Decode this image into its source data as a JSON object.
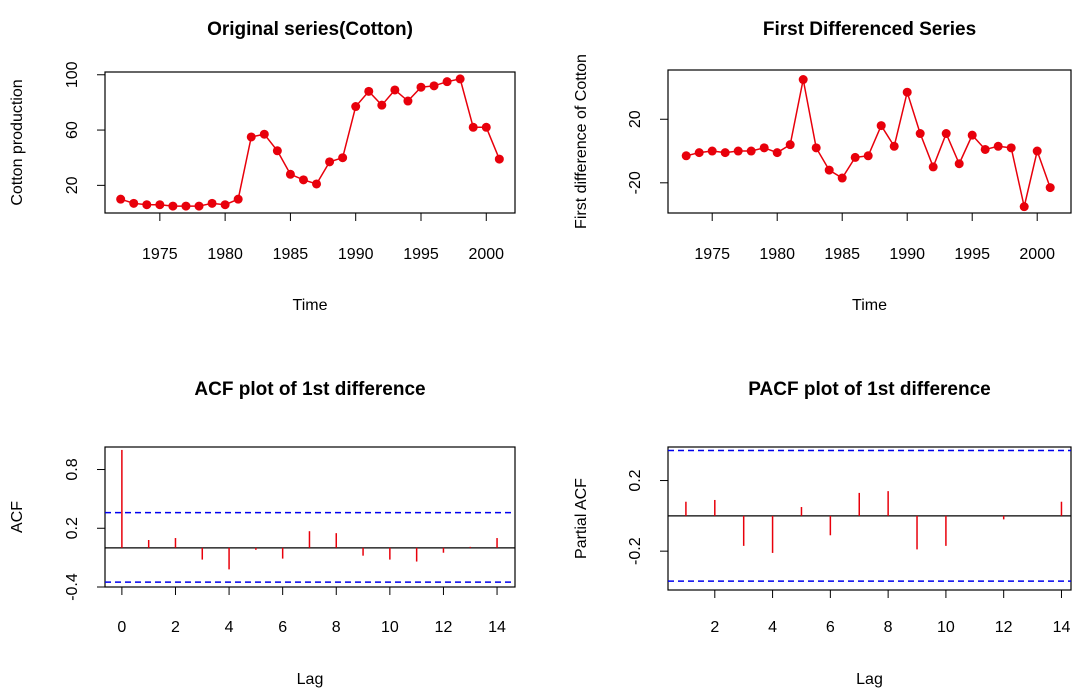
{
  "chart_data": [
    {
      "type": "line",
      "title": "Original series(Cotton)",
      "xlabel": "Time",
      "ylabel": "Cotton production",
      "x": [
        1972,
        1973,
        1974,
        1975,
        1976,
        1977,
        1978,
        1979,
        1980,
        1981,
        1982,
        1983,
        1984,
        1985,
        1986,
        1987,
        1988,
        1989,
        1990,
        1991,
        1992,
        1993,
        1994,
        1995,
        1996,
        1997,
        1998,
        1999,
        2000,
        2001
      ],
      "series": [
        {
          "color": "#e8000b",
          "values": [
            10,
            7,
            6,
            6,
            5,
            5,
            5,
            7,
            6,
            10,
            55,
            57,
            45,
            28,
            24,
            21,
            37,
            40,
            77,
            88,
            78,
            89,
            81,
            91,
            92,
            95,
            97,
            62,
            62,
            39
          ]
        }
      ],
      "xlim": [
        1970.8,
        2002.2
      ],
      "xticks": [
        1975,
        1980,
        1985,
        1990,
        1995,
        2000
      ],
      "ylim": [
        0,
        102
      ],
      "yticks": [
        20,
        60,
        100
      ]
    },
    {
      "type": "line",
      "title": "First Differenced Series",
      "xlabel": "Time",
      "ylabel": "First difference of Cotton",
      "x": [
        1973,
        1974,
        1975,
        1976,
        1977,
        1978,
        1979,
        1980,
        1981,
        1982,
        1983,
        1984,
        1985,
        1986,
        1987,
        1988,
        1989,
        1990,
        1991,
        1992,
        1993,
        1994,
        1995,
        1996,
        1997,
        1998,
        1999,
        2000,
        2001
      ],
      "series": [
        {
          "color": "#e8000b",
          "values": [
            -3,
            -1,
            0,
            -1,
            0,
            0,
            2,
            -1,
            4,
            45,
            2,
            -12,
            -17,
            -4,
            -3,
            16,
            3,
            37,
            11,
            -10,
            11,
            -8,
            10,
            1,
            3,
            2,
            -35,
            0,
            -23
          ]
        }
      ],
      "xlim": [
        1971.6,
        2002.6
      ],
      "xticks": [
        1975,
        1980,
        1985,
        1990,
        1995,
        2000
      ],
      "ylim": [
        -39,
        51
      ],
      "yticks": [
        -20,
        20
      ]
    },
    {
      "type": "stem",
      "title": "ACF plot of 1st difference",
      "xlabel": "Lag",
      "ylabel": "ACF",
      "x": [
        0,
        1,
        2,
        3,
        4,
        5,
        6,
        7,
        8,
        9,
        10,
        11,
        12,
        13,
        14
      ],
      "series": [
        {
          "color": "#e8000b",
          "values": [
            1.0,
            0.08,
            0.1,
            -0.12,
            -0.22,
            -0.02,
            -0.11,
            0.17,
            0.15,
            -0.08,
            -0.12,
            -0.14,
            -0.05,
            0.01,
            0.1
          ]
        }
      ],
      "conf_limits": [
        -0.35,
        0.36
      ],
      "conf_color": "#0000ee",
      "xlim": [
        -0.63,
        14.67
      ],
      "xticks": [
        0,
        2,
        4,
        6,
        8,
        10,
        12,
        14
      ],
      "ylim": [
        -0.4,
        1.03
      ],
      "yticks": [
        -0.4,
        0.2,
        0.8
      ]
    },
    {
      "type": "stem",
      "title": "PACF plot of 1st difference",
      "xlabel": "Lag",
      "ylabel": "Partial ACF",
      "x": [
        1,
        2,
        3,
        4,
        5,
        6,
        7,
        8,
        9,
        10,
        11,
        12,
        13,
        14
      ],
      "series": [
        {
          "color": "#e8000b",
          "values": [
            0.08,
            0.09,
            -0.17,
            -0.21,
            0.05,
            -0.11,
            0.13,
            0.14,
            -0.19,
            -0.17,
            0.0,
            -0.02,
            0.0,
            0.08
          ]
        }
      ],
      "conf_limits": [
        -0.37,
        0.37
      ],
      "conf_color": "#0000ee",
      "xlim": [
        0.38,
        14.33
      ],
      "xticks": [
        2,
        4,
        6,
        8,
        10,
        12,
        14
      ],
      "ylim": [
        -0.42,
        0.39
      ],
      "yticks": [
        -0.2,
        0.2
      ]
    }
  ]
}
